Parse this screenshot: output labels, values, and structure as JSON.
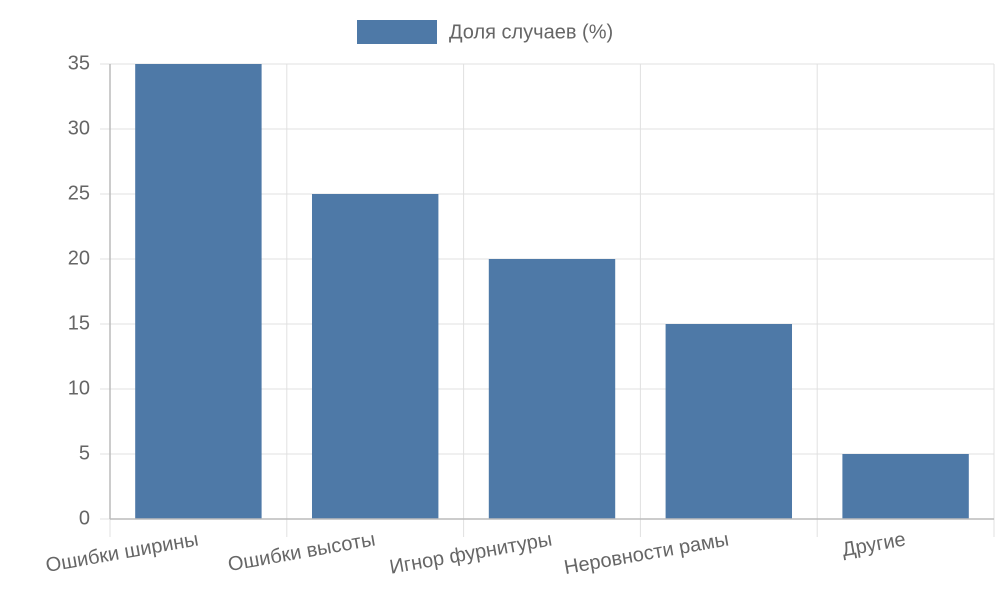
{
  "chart_data": {
    "type": "bar",
    "categories": [
      "Ошибки ширины",
      "Ошибки высоты",
      "Игнор фурнитуры",
      "Неровности рамы",
      "Другие"
    ],
    "series": [
      {
        "name": "Доля случаев (%)",
        "color": "#4e79a7",
        "values": [
          35,
          25,
          20,
          15,
          5
        ]
      }
    ],
    "ylim": [
      0,
      35
    ],
    "yticks": [
      0,
      5,
      10,
      15,
      20,
      25,
      30,
      35
    ],
    "grid": true,
    "legend": "top"
  }
}
